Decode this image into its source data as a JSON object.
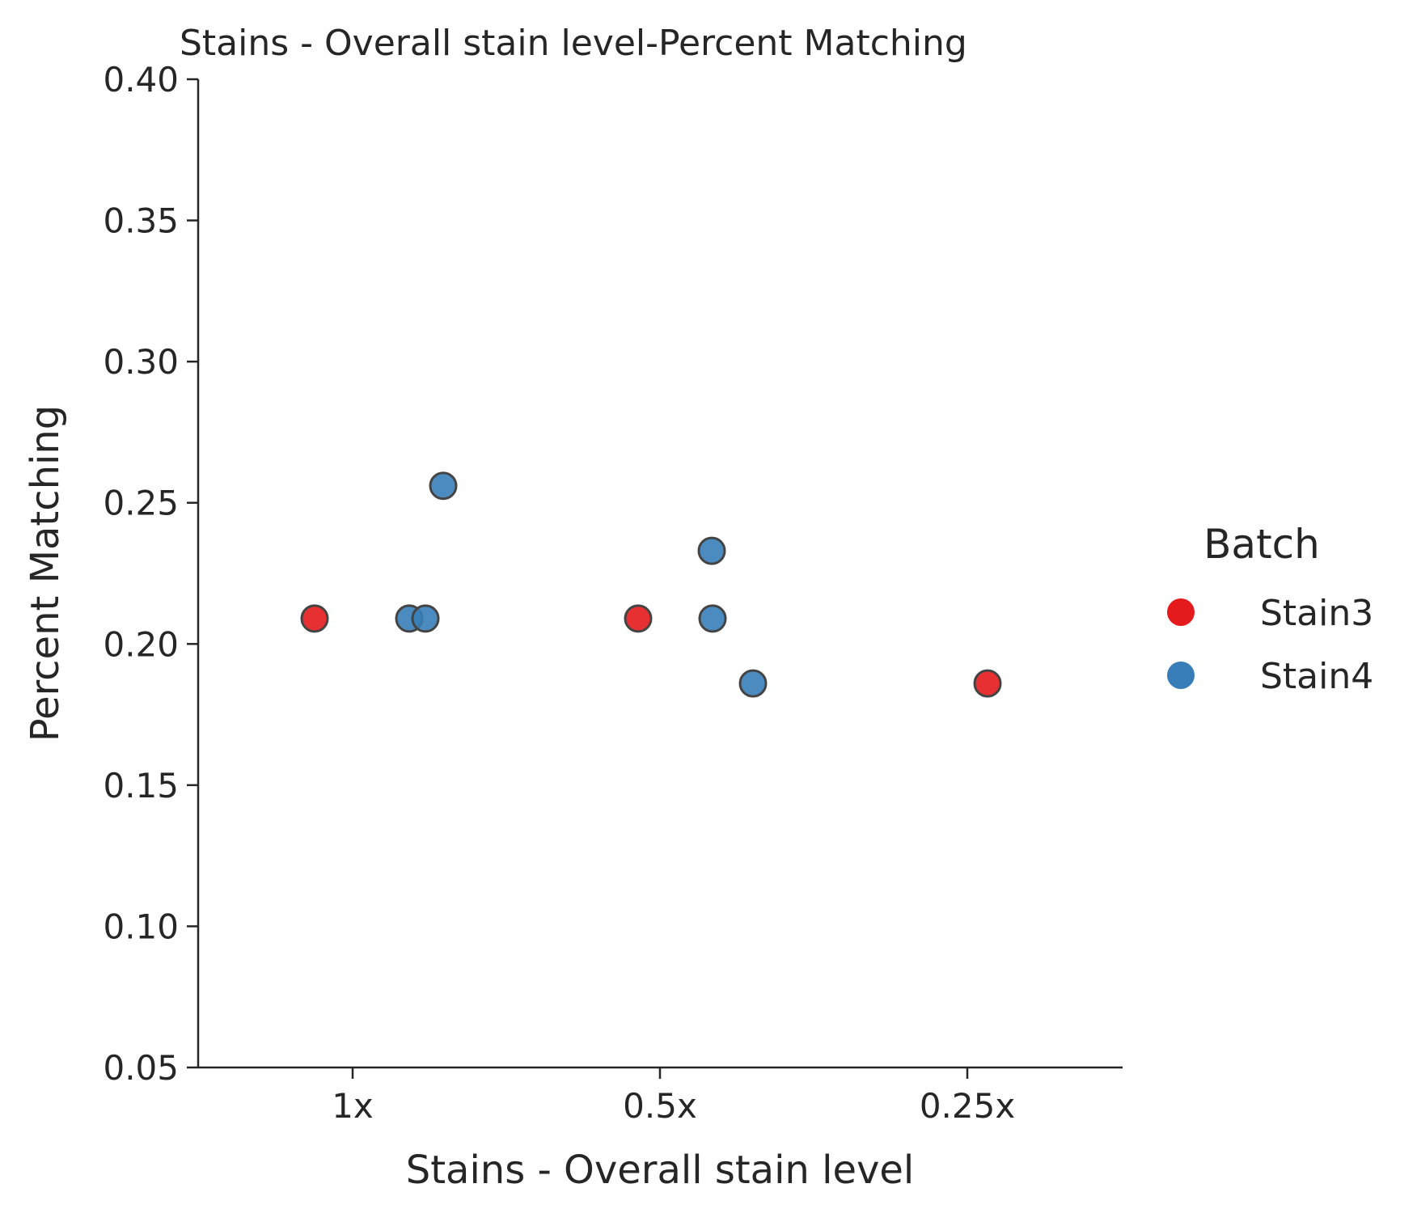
{
  "chart_data": {
    "type": "scatter",
    "title": "Stains - Overall stain level-Percent Matching",
    "xlabel": "Stains - Overall stain level",
    "ylabel": "Percent Matching",
    "x_categories": [
      "1x",
      "0.5x",
      "0.25x"
    ],
    "ylim": [
      0.05,
      0.4
    ],
    "y_ticks": [
      "0.05",
      "0.10",
      "0.15",
      "0.20",
      "0.25",
      "0.30",
      "0.35",
      "0.40"
    ],
    "grid": false,
    "legend": {
      "title": "Batch",
      "placement": "right"
    },
    "series": [
      {
        "name": "Stain3",
        "color": "#e41a1c",
        "points": [
          {
            "category": "1x",
            "y": 0.209
          },
          {
            "category": "0.5x",
            "y": 0.209
          },
          {
            "category": "0.25x",
            "y": 0.186
          }
        ]
      },
      {
        "name": "Stain4",
        "color": "#377eb8",
        "points": [
          {
            "category": "1x",
            "y": 0.209
          },
          {
            "category": "1x",
            "y": 0.209
          },
          {
            "category": "1x",
            "y": 0.256
          },
          {
            "category": "0.5x",
            "y": 0.233
          },
          {
            "category": "0.5x",
            "y": 0.209
          },
          {
            "category": "0.5x",
            "y": 0.186
          }
        ]
      }
    ]
  }
}
